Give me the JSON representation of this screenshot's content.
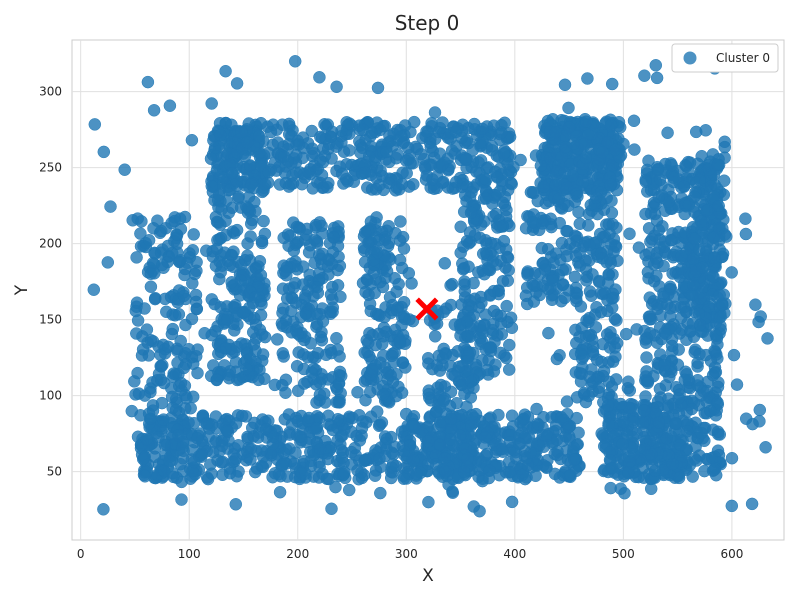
{
  "chart_data": {
    "type": "scatter",
    "title": "Step 0",
    "xlabel": "X",
    "ylabel": "Y",
    "xlim": [
      -8,
      648
    ],
    "ylim": [
      5,
      334
    ],
    "xticks": [
      0,
      100,
      200,
      300,
      400,
      500,
      600
    ],
    "yticks": [
      50,
      100,
      150,
      200,
      250,
      300
    ],
    "grid": true,
    "legend": {
      "placement": "top-right",
      "entries": [
        "Cluster 0"
      ]
    },
    "point_color": "#1f77b4",
    "point_alpha": 0.8,
    "centroid": {
      "x": 319,
      "y": 157,
      "color": "#ff0000",
      "marker": "x"
    },
    "series": [
      {
        "name": "Cluster 0",
        "shapes": [
          {
            "kind": "rect",
            "x": [
              50,
              108
            ],
            "y": [
              45,
              218
            ],
            "density": 180
          },
          {
            "kind": "rect",
            "x": [
              55,
              330
            ],
            "y": [
              45,
              88
            ],
            "density": 420
          },
          {
            "kind": "rect",
            "x": [
              120,
              170
            ],
            "y": [
              110,
              280
            ],
            "density": 260
          },
          {
            "kind": "rect",
            "x": [
              120,
              400
            ],
            "y": [
              235,
              280
            ],
            "density": 420
          },
          {
            "kind": "rect",
            "x": [
              185,
              240
            ],
            "y": [
              95,
              215
            ],
            "density": 170
          },
          {
            "kind": "rect",
            "x": [
              260,
              300
            ],
            "y": [
              95,
              215
            ],
            "density": 150
          },
          {
            "kind": "rect",
            "x": [
              350,
              395
            ],
            "y": [
              110,
              235
            ],
            "density": 160
          },
          {
            "kind": "rect",
            "x": [
              330,
              460
            ],
            "y": [
              45,
              88
            ],
            "density": 260
          },
          {
            "kind": "rect",
            "x": [
              320,
              362
            ],
            "y": [
              45,
              160
            ],
            "density": 130
          },
          {
            "kind": "rect",
            "x": [
              425,
              498
            ],
            "y": [
              235,
              282
            ],
            "density": 280
          },
          {
            "kind": "rect",
            "x": [
              455,
              495
            ],
            "y": [
              95,
              235
            ],
            "density": 160
          },
          {
            "kind": "rect",
            "x": [
              410,
              450
            ],
            "y": [
              160,
              240
            ],
            "density": 90
          },
          {
            "kind": "rect",
            "x": [
              520,
              590
            ],
            "y": [
              45,
              255
            ],
            "density": 420
          },
          {
            "kind": "rect",
            "x": [
              480,
              560
            ],
            "y": [
              45,
              95
            ],
            "density": 200
          },
          {
            "kind": "rect",
            "x": [
              555,
              595
            ],
            "y": [
              150,
              260
            ],
            "density": 160
          },
          {
            "kind": "rect",
            "x": [
              10,
              640
            ],
            "y": [
              20,
              320
            ],
            "density": 220
          }
        ]
      }
    ]
  }
}
